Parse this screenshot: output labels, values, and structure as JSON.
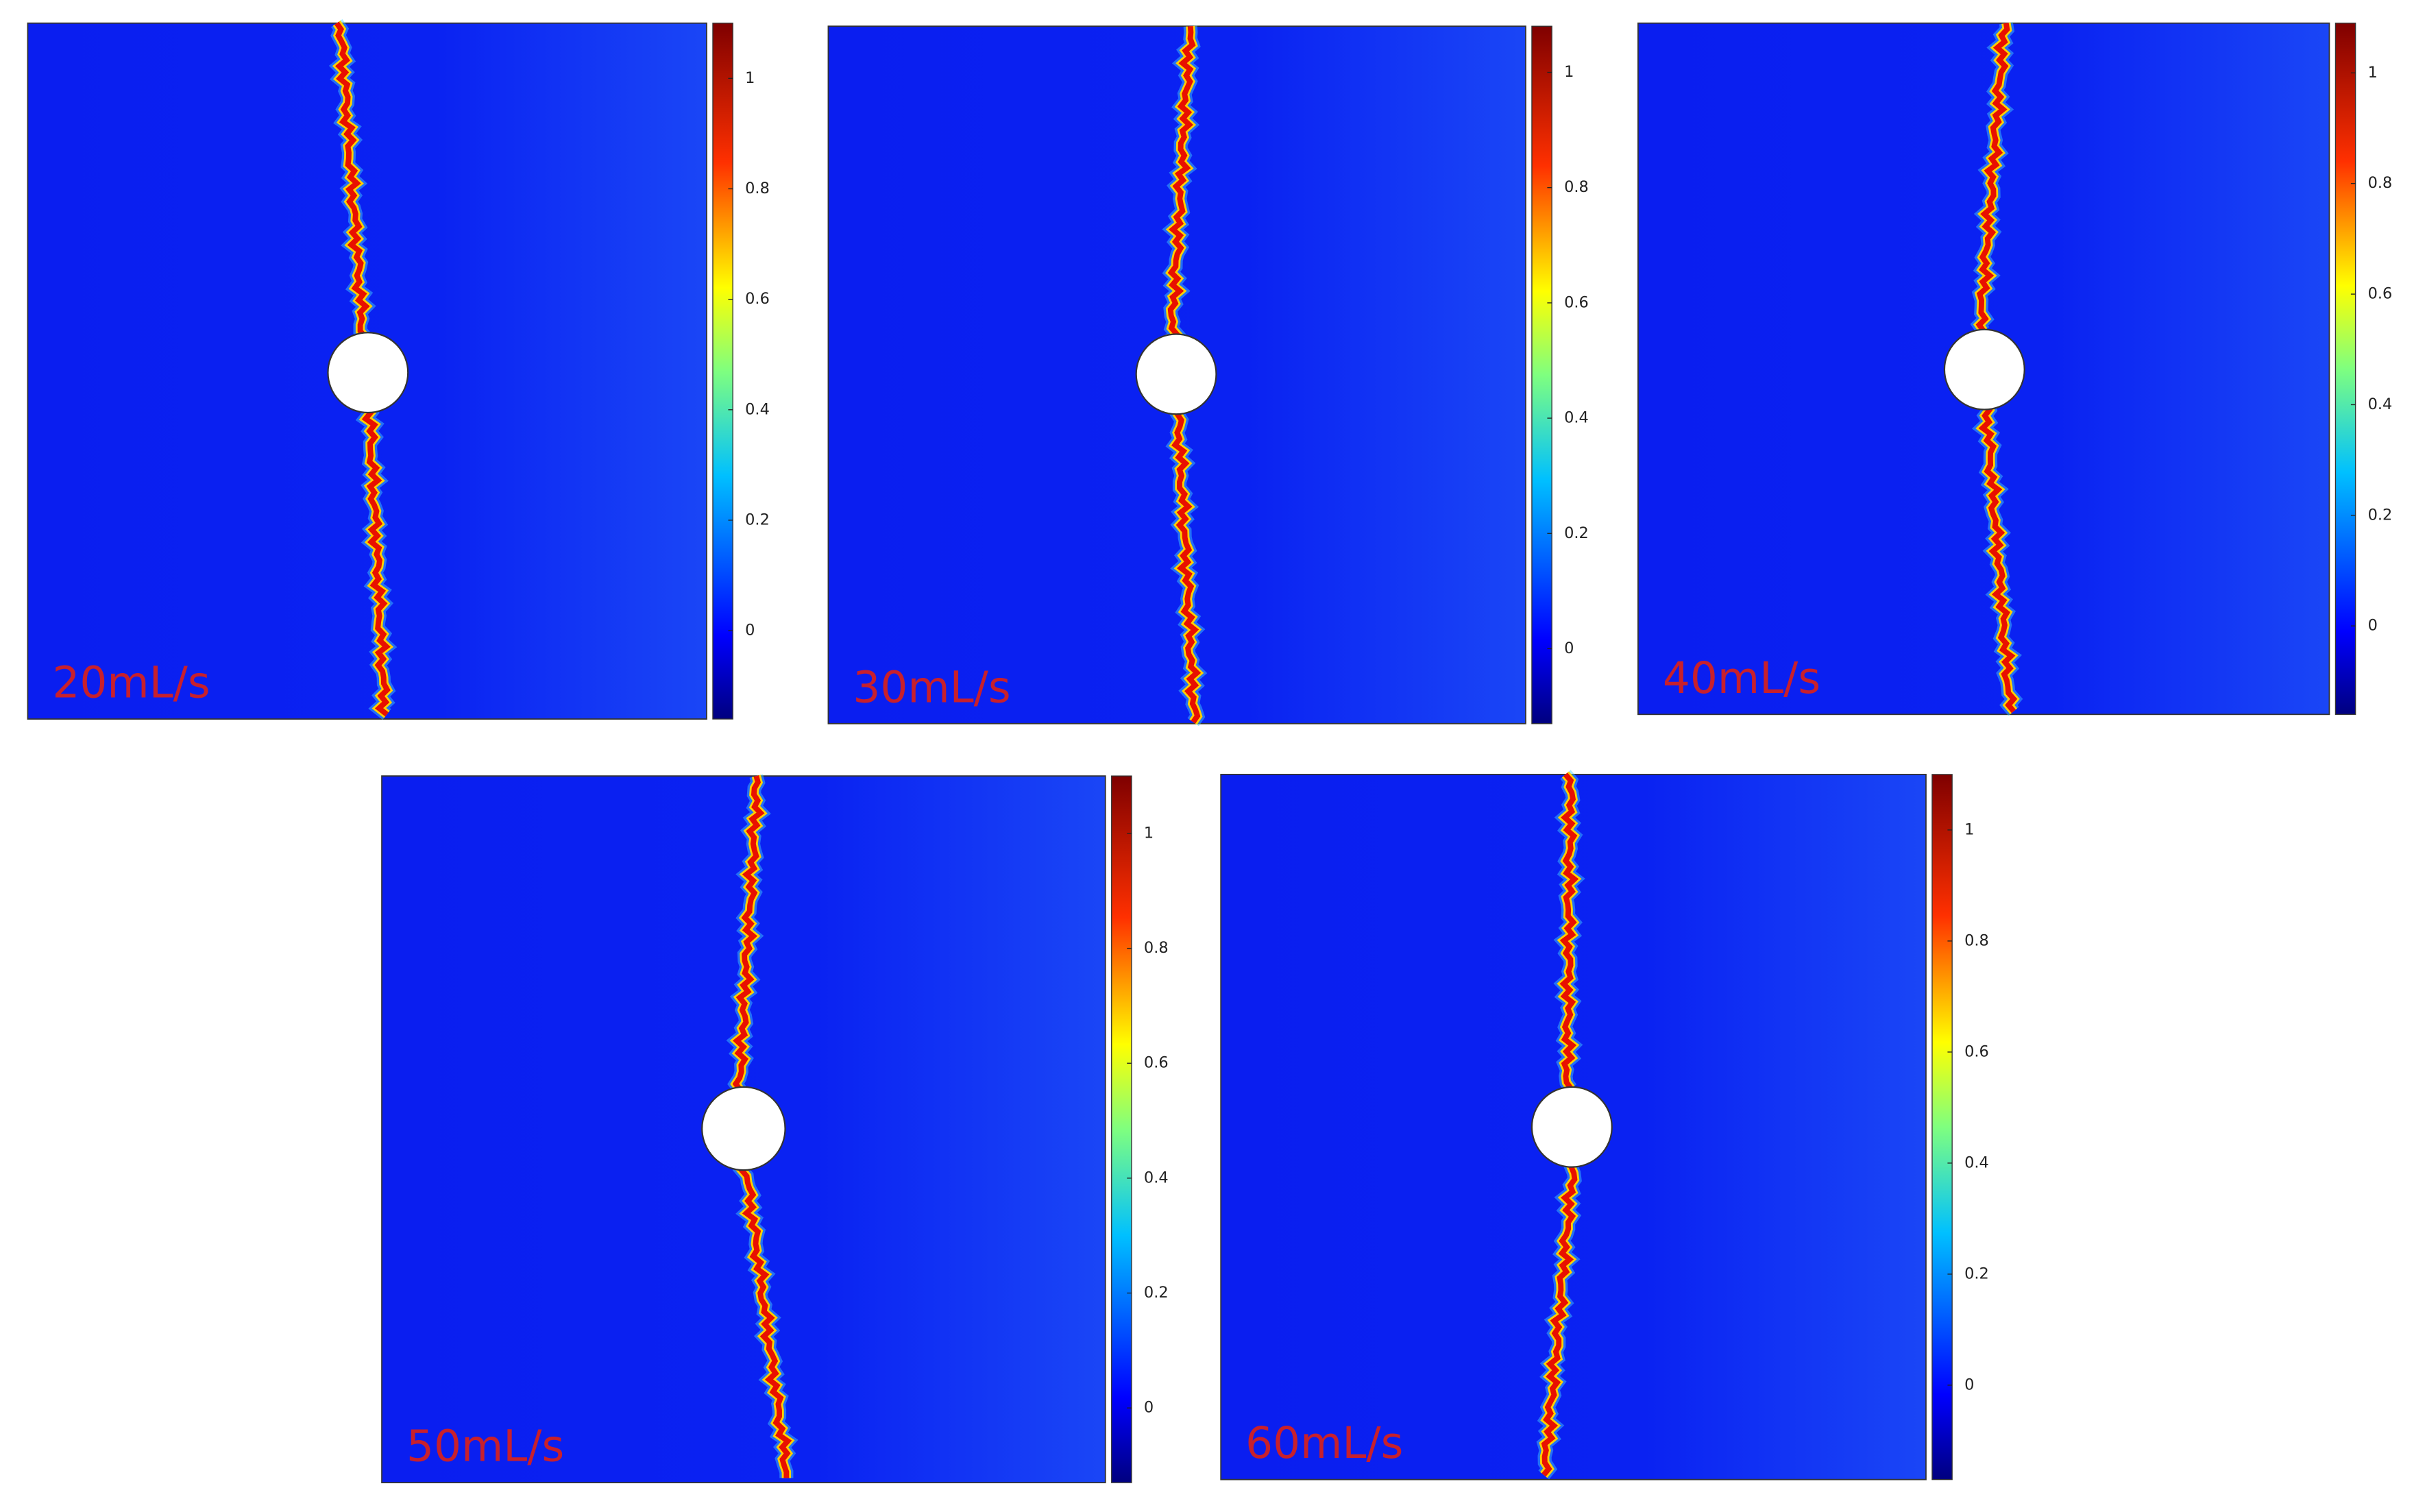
{
  "panels": [
    {
      "label": "20mL/s",
      "colorbar": {
        "lim": [
          -0.16,
          1.1
        ],
        "ticks": [
          0,
          0.2,
          0.4,
          0.6,
          0.8,
          1
        ]
      }
    },
    {
      "label": "30mL/s",
      "colorbar": {
        "lim": [
          -0.13,
          1.08
        ],
        "ticks": [
          0,
          0.2,
          0.4,
          0.6,
          0.8,
          1
        ]
      }
    },
    {
      "label": "40mL/s",
      "colorbar": {
        "lim": [
          -0.16,
          1.09
        ],
        "ticks": [
          0,
          0.2,
          0.4,
          0.6,
          0.8,
          1
        ]
      }
    },
    {
      "label": "50mL/s",
      "colorbar": {
        "lim": [
          -0.13,
          1.1
        ],
        "ticks": [
          0,
          0.2,
          0.4,
          0.6,
          0.8,
          1
        ]
      }
    },
    {
      "label": "60mL/s",
      "colorbar": {
        "lim": [
          -0.17,
          1.1
        ],
        "ticks": [
          0,
          0.2,
          0.4,
          0.6,
          0.8,
          1
        ]
      }
    }
  ]
}
